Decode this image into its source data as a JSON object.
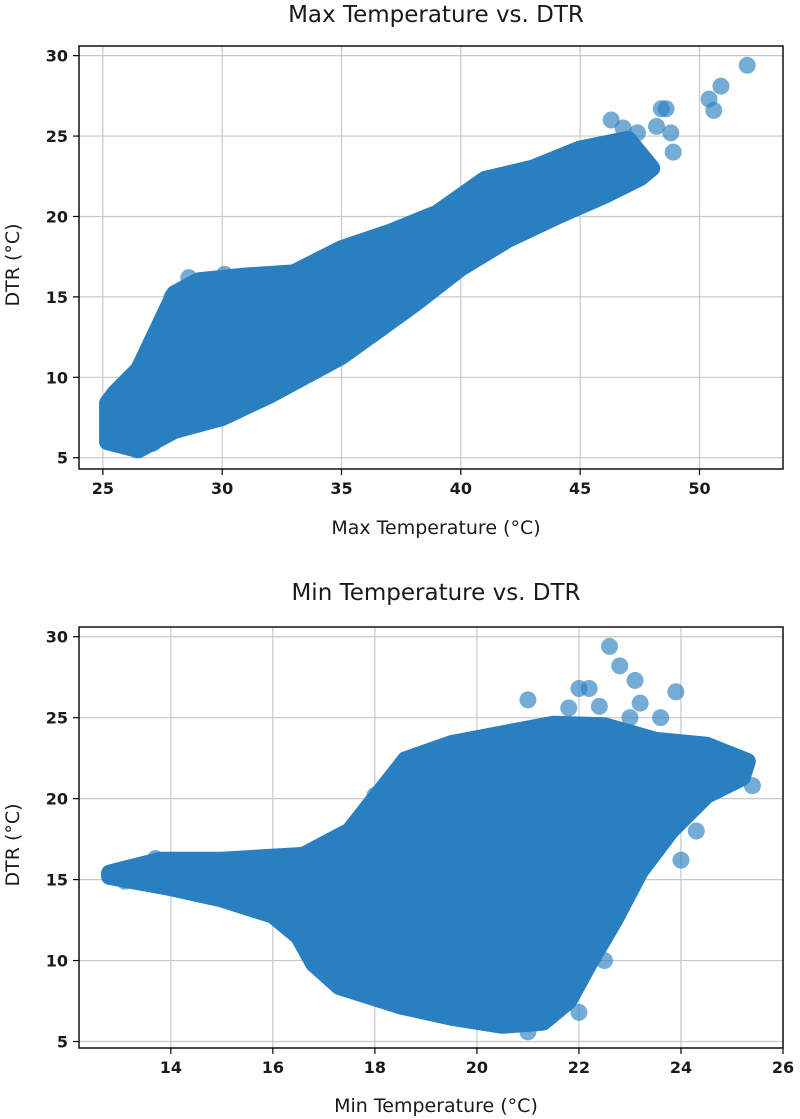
{
  "colors": {
    "point": "#2a7fc0",
    "point_alpha": 0.65,
    "cloud": "#2a7fc0"
  },
  "chart_data": [
    {
      "type": "scatter",
      "title": "Max Temperature vs. DTR",
      "xlabel": "Max Temperature (°C)",
      "ylabel": "DTR (°C)",
      "xlim": [
        24,
        53.5
      ],
      "ylim": [
        4.3,
        30.6
      ],
      "xticks": [
        25,
        30,
        35,
        40,
        45,
        50
      ],
      "yticks": [
        5,
        10,
        15,
        20,
        25,
        30
      ],
      "grid": true,
      "density_envelope": [
        [
          25.2,
          6.0
        ],
        [
          26.5,
          5.5
        ],
        [
          28.0,
          6.7
        ],
        [
          30.0,
          7.5
        ],
        [
          32.0,
          8.9
        ],
        [
          35.0,
          11.3
        ],
        [
          38.0,
          14.5
        ],
        [
          40.0,
          16.8
        ],
        [
          42.0,
          18.6
        ],
        [
          44.0,
          20.0
        ],
        [
          46.0,
          21.3
        ],
        [
          47.5,
          22.4
        ],
        [
          48.0,
          23.0
        ],
        [
          47.0,
          24.8
        ],
        [
          45.0,
          24.2
        ],
        [
          43.0,
          23.0
        ],
        [
          41.0,
          22.3
        ],
        [
          39.0,
          20.2
        ],
        [
          37.0,
          19.0
        ],
        [
          35.0,
          18.0
        ],
        [
          33.0,
          16.5
        ],
        [
          31.0,
          16.3
        ],
        [
          29.0,
          16.0
        ],
        [
          28.0,
          15.2
        ],
        [
          27.3,
          13.0
        ],
        [
          26.5,
          10.5
        ],
        [
          25.5,
          9.0
        ],
        [
          25.2,
          8.4
        ]
      ],
      "points": [
        [
          25.2,
          8.3
        ],
        [
          25.5,
          6.5
        ],
        [
          26.4,
          5.5
        ],
        [
          27.1,
          5.9
        ],
        [
          28.2,
          6.8
        ],
        [
          27.9,
          15.0
        ],
        [
          28.6,
          16.2
        ],
        [
          30.1,
          16.4
        ],
        [
          31.5,
          16.0
        ],
        [
          33.9,
          17.1
        ],
        [
          41.5,
          22.3
        ],
        [
          46.3,
          26.0
        ],
        [
          46.8,
          25.5
        ],
        [
          47.4,
          25.2
        ],
        [
          48.2,
          25.6
        ],
        [
          48.4,
          26.7
        ],
        [
          48.6,
          26.7
        ],
        [
          48.9,
          24.0
        ],
        [
          48.8,
          25.2
        ],
        [
          50.4,
          27.3
        ],
        [
          50.6,
          26.6
        ],
        [
          50.9,
          28.1
        ],
        [
          52.0,
          29.4
        ]
      ]
    },
    {
      "type": "scatter",
      "title": "Min Temperature vs. DTR",
      "xlabel": "Min Temperature (°C)",
      "ylabel": "DTR (°C)",
      "xlim": [
        12.2,
        26.0
      ],
      "ylim": [
        4.6,
        30.6
      ],
      "xticks": [
        14,
        16,
        18,
        20,
        22,
        24,
        26
      ],
      "yticks": [
        5,
        10,
        15,
        20,
        25,
        30
      ],
      "grid": true,
      "density_envelope": [
        [
          12.8,
          15.2
        ],
        [
          14.0,
          14.5
        ],
        [
          15.0,
          13.8
        ],
        [
          16.0,
          12.8
        ],
        [
          16.5,
          11.5
        ],
        [
          16.8,
          9.8
        ],
        [
          17.3,
          8.4
        ],
        [
          18.5,
          7.2
        ],
        [
          19.5,
          6.5
        ],
        [
          20.5,
          6.0
        ],
        [
          21.3,
          6.2
        ],
        [
          21.8,
          7.5
        ],
        [
          22.2,
          9.8
        ],
        [
          22.7,
          12.5
        ],
        [
          23.2,
          15.5
        ],
        [
          23.8,
          18.0
        ],
        [
          24.5,
          20.2
        ],
        [
          25.2,
          21.3
        ],
        [
          25.3,
          22.3
        ],
        [
          24.5,
          23.3
        ],
        [
          23.5,
          23.6
        ],
        [
          22.5,
          24.5
        ],
        [
          21.5,
          24.6
        ],
        [
          20.5,
          24.0
        ],
        [
          19.5,
          23.4
        ],
        [
          18.6,
          22.4
        ],
        [
          18.0,
          20.0
        ],
        [
          17.5,
          18.0
        ],
        [
          16.6,
          16.5
        ],
        [
          15.0,
          16.2
        ],
        [
          13.8,
          16.2
        ],
        [
          12.8,
          15.4
        ]
      ],
      "points": [
        [
          12.8,
          15.3
        ],
        [
          13.1,
          14.9
        ],
        [
          13.3,
          15.3
        ],
        [
          13.7,
          16.3
        ],
        [
          16.2,
          16.1
        ],
        [
          16.8,
          9.8
        ],
        [
          17.0,
          17.0
        ],
        [
          17.6,
          17.8
        ],
        [
          18.0,
          20.2
        ],
        [
          18.6,
          22.4
        ],
        [
          21.0,
          26.1
        ],
        [
          21.0,
          5.6
        ],
        [
          21.8,
          25.6
        ],
        [
          22.0,
          26.8
        ],
        [
          22.2,
          26.8
        ],
        [
          22.0,
          6.8
        ],
        [
          22.5,
          10.0
        ],
        [
          22.4,
          25.7
        ],
        [
          22.6,
          29.4
        ],
        [
          22.8,
          28.2
        ],
        [
          23.1,
          27.3
        ],
        [
          23.2,
          25.9
        ],
        [
          23.0,
          25.0
        ],
        [
          23.6,
          25.0
        ],
        [
          23.9,
          26.6
        ],
        [
          24.0,
          16.2
        ],
        [
          24.3,
          18.0
        ],
        [
          25.4,
          20.8
        ]
      ]
    }
  ]
}
